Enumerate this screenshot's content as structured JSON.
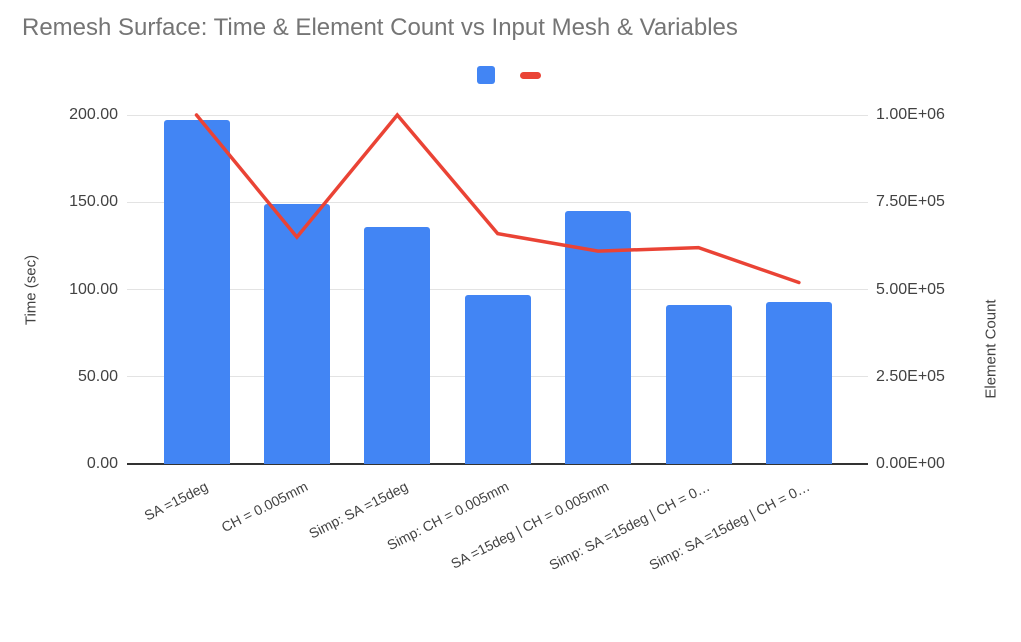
{
  "title": "Remesh Surface: Time & Element Count vs Input Mesh & Variables",
  "legend": {
    "items": [
      {
        "name": "Time (sec)",
        "label": "",
        "shape": "square",
        "color": "#4285F4"
      },
      {
        "name": "Element Count",
        "label": "",
        "shape": "dash",
        "color": "#EA4335"
      }
    ]
  },
  "axes": {
    "left": {
      "title": "Time (sec)",
      "ticks": [
        "200.00",
        "150.00",
        "100.00",
        "50.00",
        "0.00"
      ]
    },
    "right": {
      "title": "Element Count",
      "ticks": [
        "1.00E+06",
        "7.50E+05",
        "5.00E+05",
        "2.50E+05",
        "0.00E+00"
      ]
    }
  },
  "chart_data": {
    "type": "bar",
    "subtype": "combo-bar-line-dual-axis",
    "title": "Remesh Surface: Time & Element Count vs Input Mesh & Variables",
    "categories": [
      "SA =15deg",
      "CH = 0.005mm",
      "Simp: SA =15deg",
      "Simp: CH = 0.005mm",
      "SA =15deg | CH = 0.005mm",
      "Simp: SA =15deg | CH = 0…",
      "Simp: SA =15deg | CH = 0…"
    ],
    "series": [
      {
        "name": "Time (sec)",
        "type": "bar",
        "axis": "left",
        "color": "#4285F4",
        "values": [
          197,
          149,
          136,
          97,
          145,
          91,
          93
        ]
      },
      {
        "name": "Element Count",
        "type": "line",
        "axis": "right",
        "color": "#EA4335",
        "values": [
          1000000,
          650000,
          1000000,
          660000,
          610000,
          620000,
          520000
        ]
      }
    ],
    "xlabel": "",
    "ylabel_left": "Time (sec)",
    "ylabel_right": "Element Count",
    "left_ylim": [
      0,
      200
    ],
    "right_ylim": [
      0,
      1000000
    ],
    "grid": true,
    "legend_position": "top-center"
  },
  "colors": {
    "bar": "#4285F4",
    "line": "#EA4335",
    "title_text": "#757575",
    "axis_text": "#424242",
    "gridline": "#e3e3e3",
    "baseline": "#333333",
    "background": "#ffffff"
  }
}
